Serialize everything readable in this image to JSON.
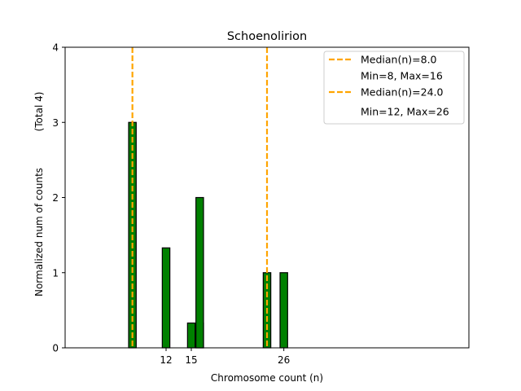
{
  "chart_data": {
    "type": "bar",
    "title": "Schoenolirion",
    "xlabel": "Chromosome count (n)",
    "ylabel": "Normalized num of counts",
    "ylabel_note": "(Total 4)",
    "xlim": [
      0,
      48
    ],
    "ylim": [
      0,
      4
    ],
    "x_ticks": [
      12,
      15,
      26
    ],
    "y_ticks": [
      0,
      1,
      2,
      3,
      4
    ],
    "bar_width": 0.9,
    "bar_color": "#008000",
    "bar_edge_color": "#000000",
    "bars": [
      {
        "x": 8,
        "value": 3.0
      },
      {
        "x": 12,
        "value": 1.33
      },
      {
        "x": 15,
        "value": 0.33
      },
      {
        "x": 16,
        "value": 0.33
      },
      {
        "x": 16,
        "value": 2.0
      },
      {
        "x": 24,
        "value": 1.0
      },
      {
        "x": 26,
        "value": 1.0
      }
    ],
    "baseline_segments": [
      [
        0,
        8
      ],
      [
        16,
        19.5
      ]
    ],
    "median_lines": [
      {
        "x": 8.0,
        "color": "#FFA500",
        "label": "Median(n)=8.0",
        "range_label": "Min=8, Max=16"
      },
      {
        "x": 24.0,
        "color": "#FFA500",
        "label": "Median(n)=24.0",
        "range_label": "Min=12, Max=26"
      }
    ],
    "legend_position": "top-right",
    "grid": false
  }
}
